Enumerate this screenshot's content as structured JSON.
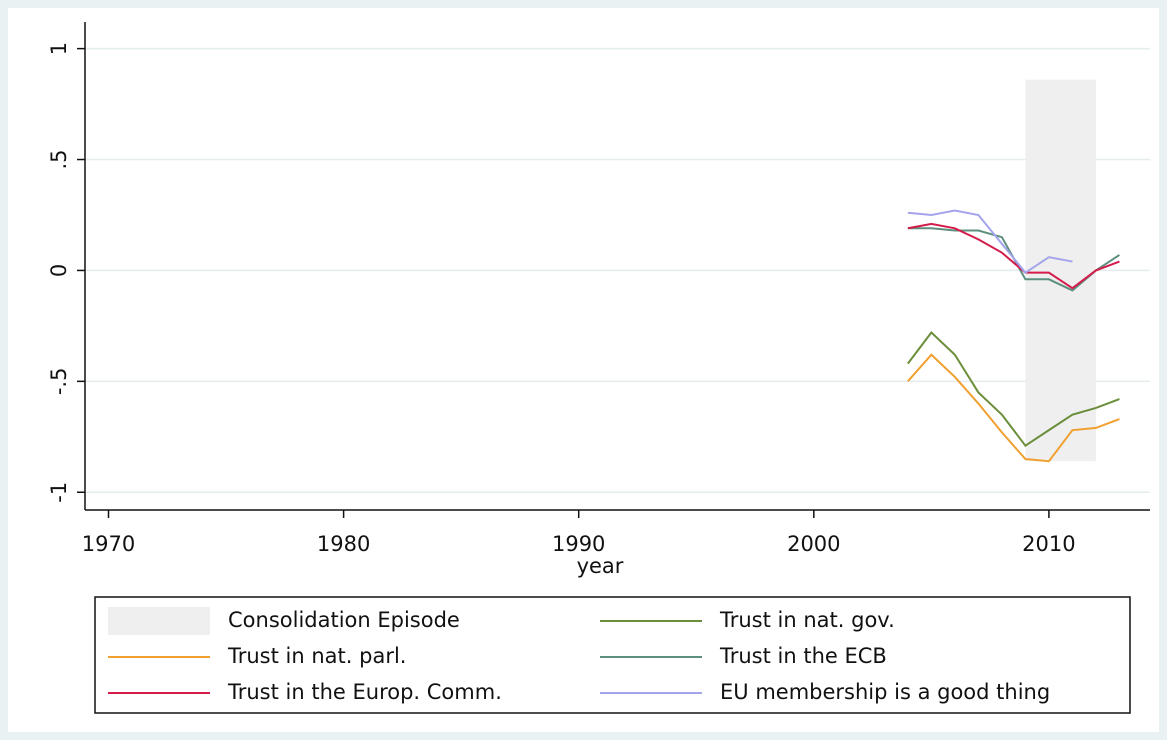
{
  "chart_data": {
    "type": "line",
    "x_label": "year",
    "x": [
      2004,
      2005,
      2006,
      2007,
      2008,
      2009,
      2010,
      2011,
      2012,
      2013
    ],
    "xlim": [
      1969,
      2014.3
    ],
    "xticks": [
      1970,
      1980,
      1990,
      2000,
      2010
    ],
    "ylim": [
      -1.08,
      1.12
    ],
    "yticks": [
      {
        "value": -1,
        "label": "-1"
      },
      {
        "value": -0.5,
        "label": "-.5"
      },
      0,
      {
        "value": 0.5,
        "label": ".5"
      },
      1
    ],
    "grid": true,
    "episode": {
      "name": "Consolidation Episode",
      "color": "#efefef",
      "x": [
        2009,
        2012
      ],
      "y": [
        -0.86,
        0.86
      ]
    },
    "series": [
      {
        "name": "Trust in nat. gov.",
        "color": "#6b8e3a",
        "values": [
          -0.42,
          -0.28,
          -0.38,
          -0.55,
          -0.65,
          -0.79,
          -0.72,
          -0.65,
          -0.62,
          -0.58
        ]
      },
      {
        "name": "Trust in nat. parl.",
        "color": "#f0a030",
        "values": [
          -0.5,
          -0.38,
          -0.48,
          -0.6,
          -0.73,
          -0.85,
          -0.86,
          -0.72,
          -0.71,
          -0.67
        ]
      },
      {
        "name": "Trust in the ECB",
        "color": "#5e8f7e",
        "values": [
          0.19,
          0.19,
          0.18,
          0.18,
          0.15,
          -0.04,
          -0.04,
          -0.09,
          0.0,
          0.07
        ]
      },
      {
        "name": "Trust in the Europ. Comm.",
        "color": "#d41c4c",
        "values": [
          0.19,
          0.21,
          0.19,
          0.14,
          0.08,
          -0.01,
          -0.01,
          -0.08,
          0.0,
          0.04
        ]
      },
      {
        "name": "EU membership is a good thing",
        "color": "#a4a4ec",
        "values": [
          0.26,
          0.25,
          0.27,
          0.25,
          0.12,
          -0.01,
          0.06,
          0.04,
          null,
          null
        ]
      }
    ],
    "legend": "bottom"
  }
}
